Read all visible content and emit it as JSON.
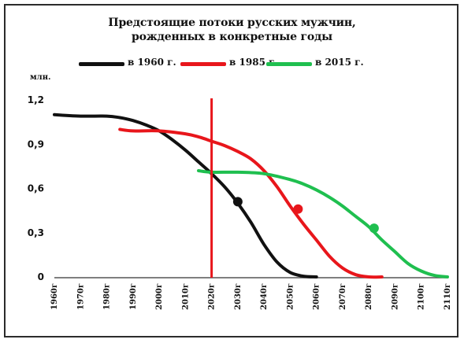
{
  "chart_data": {
    "type": "line",
    "title": "Предстоящие потоки русских мужчин, рожденных в конкретные годы",
    "title_lines": [
      "Предстоящие потоки русских мужчин,",
      "рожденных в конкретные годы"
    ],
    "unit_label": "млн.",
    "xlabel": "",
    "ylabel": "",
    "x_ticks": [
      "1960г",
      "1970г",
      "1980г",
      "1990г",
      "2000г",
      "2010г",
      "2020г",
      "2030г",
      "2040г",
      "2050г",
      "2060г",
      "2070г",
      "2080г",
      "2090г",
      "2100г",
      "2110г"
    ],
    "y_ticks": [
      "0",
      "0,3",
      "0,6",
      "0,9",
      "1,2"
    ],
    "xlim": [
      1960,
      2110
    ],
    "ylim": [
      0,
      1.2
    ],
    "grid": false,
    "legend_position": "top",
    "vertical_marker": {
      "x": 2020,
      "color": "#e8161b"
    },
    "series": [
      {
        "name": "в 1960 г.",
        "color": "#111111",
        "x": [
          1960,
          1970,
          1980,
          1985,
          1990,
          1995,
          2000,
          2005,
          2010,
          2015,
          2020,
          2025,
          2030,
          2035,
          2040,
          2045,
          2050,
          2055,
          2060
        ],
        "y": [
          1.1,
          1.09,
          1.09,
          1.08,
          1.06,
          1.03,
          0.99,
          0.93,
          0.86,
          0.78,
          0.7,
          0.61,
          0.5,
          0.37,
          0.22,
          0.1,
          0.03,
          0.005,
          0.0
        ],
        "marker": {
          "x": 2030,
          "y": 0.51
        }
      },
      {
        "name": "в 1985 г.",
        "color": "#e8161b",
        "x": [
          1985,
          1990,
          2000,
          2010,
          2015,
          2020,
          2025,
          2030,
          2035,
          2040,
          2045,
          2050,
          2055,
          2060,
          2065,
          2070,
          2075,
          2080,
          2085
        ],
        "y": [
          1.0,
          0.99,
          0.99,
          0.97,
          0.95,
          0.92,
          0.89,
          0.85,
          0.8,
          0.72,
          0.61,
          0.48,
          0.36,
          0.25,
          0.14,
          0.06,
          0.015,
          0.0,
          0.0
        ],
        "marker": {
          "x": 2053,
          "y": 0.46
        }
      },
      {
        "name": "в 2015 г.",
        "color": "#1fbf4f",
        "x": [
          2015,
          2020,
          2030,
          2040,
          2050,
          2055,
          2060,
          2065,
          2070,
          2075,
          2080,
          2085,
          2090,
          2095,
          2100,
          2105,
          2110
        ],
        "y": [
          0.72,
          0.71,
          0.71,
          0.7,
          0.66,
          0.63,
          0.59,
          0.54,
          0.48,
          0.41,
          0.34,
          0.25,
          0.17,
          0.09,
          0.04,
          0.01,
          0.0
        ],
        "marker": {
          "x": 2082,
          "y": 0.33
        }
      }
    ]
  }
}
